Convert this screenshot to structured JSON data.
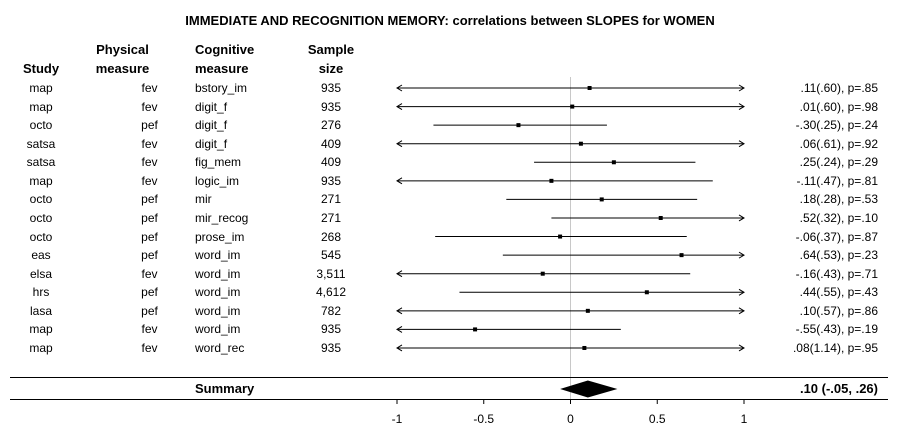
{
  "title": "IMMEDIATE AND RECOGNITION MEMORY: correlations between SLOPES for WOMEN",
  "headers": {
    "study": "Study",
    "physical_1": "Physical",
    "physical_2": "measure",
    "cognitive_1": "Cognitive",
    "cognitive_2": "measure",
    "sample_1": "Sample",
    "sample_2": "size"
  },
  "summary": {
    "label": "Summary",
    "text": ".10 (-.05, .26)",
    "estimate": 0.1,
    "lower": -0.05,
    "upper": 0.26
  },
  "chart_data": {
    "type": "forest",
    "xlim": [
      -1,
      1
    ],
    "xticks": [
      -1,
      -0.5,
      0,
      0.5,
      1
    ],
    "xtick_labels": [
      "-1",
      "-0.5",
      "0",
      "0.5",
      "1"
    ],
    "reference_line": 0,
    "rows": [
      {
        "study": "map",
        "physical": "fev",
        "cognitive": "bstory_im",
        "n": "935",
        "estimate": 0.11,
        "lower": -1,
        "upper": 1,
        "arrow_left": true,
        "arrow_right": true,
        "ci_text": ".11(.60), p=.85"
      },
      {
        "study": "map",
        "physical": "fev",
        "cognitive": "digit_f",
        "n": "935",
        "estimate": 0.01,
        "lower": -1,
        "upper": 1,
        "arrow_left": true,
        "arrow_right": true,
        "ci_text": ".01(.60), p=.98"
      },
      {
        "study": "octo",
        "physical": "pef",
        "cognitive": "digit_f",
        "n": "276",
        "estimate": -0.3,
        "lower": -0.79,
        "upper": 0.21,
        "arrow_left": false,
        "arrow_right": false,
        "ci_text": "-.30(.25), p=.24"
      },
      {
        "study": "satsa",
        "physical": "fev",
        "cognitive": "digit_f",
        "n": "409",
        "estimate": 0.06,
        "lower": -1,
        "upper": 1,
        "arrow_left": true,
        "arrow_right": true,
        "ci_text": ".06(.61), p=.92"
      },
      {
        "study": "satsa",
        "physical": "fev",
        "cognitive": "fig_mem",
        "n": "409",
        "estimate": 0.25,
        "lower": -0.21,
        "upper": 0.72,
        "arrow_left": false,
        "arrow_right": false,
        "ci_text": ".25(.24), p=.29"
      },
      {
        "study": "map",
        "physical": "fev",
        "cognitive": "logic_im",
        "n": "935",
        "estimate": -0.11,
        "lower": -1,
        "upper": 0.82,
        "arrow_left": true,
        "arrow_right": false,
        "ci_text": "-.11(.47), p=.81"
      },
      {
        "study": "octo",
        "physical": "pef",
        "cognitive": "mir",
        "n": "271",
        "estimate": 0.18,
        "lower": -0.37,
        "upper": 0.73,
        "arrow_left": false,
        "arrow_right": false,
        "ci_text": ".18(.28), p=.53"
      },
      {
        "study": "octo",
        "physical": "pef",
        "cognitive": "mir_recog",
        "n": "271",
        "estimate": 0.52,
        "lower": -0.11,
        "upper": 1,
        "arrow_left": false,
        "arrow_right": true,
        "ci_text": ".52(.32), p=.10"
      },
      {
        "study": "octo",
        "physical": "pef",
        "cognitive": "prose_im",
        "n": "268",
        "estimate": -0.06,
        "lower": -0.78,
        "upper": 0.67,
        "arrow_left": false,
        "arrow_right": false,
        "ci_text": "-.06(.37), p=.87"
      },
      {
        "study": "eas",
        "physical": "pef",
        "cognitive": "word_im",
        "n": "545",
        "estimate": 0.64,
        "lower": -0.39,
        "upper": 1,
        "arrow_left": false,
        "arrow_right": true,
        "ci_text": ".64(.53), p=.23"
      },
      {
        "study": "elsa",
        "physical": "fev",
        "cognitive": "word_im",
        "n": "3,511",
        "estimate": -0.16,
        "lower": -1,
        "upper": 0.69,
        "arrow_left": true,
        "arrow_right": false,
        "ci_text": "-.16(.43), p=.71"
      },
      {
        "study": "hrs",
        "physical": "pef",
        "cognitive": "word_im",
        "n": "4,612",
        "estimate": 0.44,
        "lower": -0.64,
        "upper": 1,
        "arrow_left": false,
        "arrow_right": true,
        "ci_text": ".44(.55), p=.43"
      },
      {
        "study": "lasa",
        "physical": "pef",
        "cognitive": "word_im",
        "n": "782",
        "estimate": 0.1,
        "lower": -1,
        "upper": 1,
        "arrow_left": true,
        "arrow_right": true,
        "ci_text": ".10(.57), p=.86"
      },
      {
        "study": "map",
        "physical": "fev",
        "cognitive": "word_im",
        "n": "935",
        "estimate": -0.55,
        "lower": -1,
        "upper": 0.29,
        "arrow_left": true,
        "arrow_right": false,
        "ci_text": "-.55(.43), p=.19"
      },
      {
        "study": "map",
        "physical": "fev",
        "cognitive": "word_rec",
        "n": "935",
        "estimate": 0.08,
        "lower": -1,
        "upper": 1,
        "arrow_left": true,
        "arrow_right": true,
        "ci_text": ".08(1.14), p=.95"
      }
    ]
  }
}
